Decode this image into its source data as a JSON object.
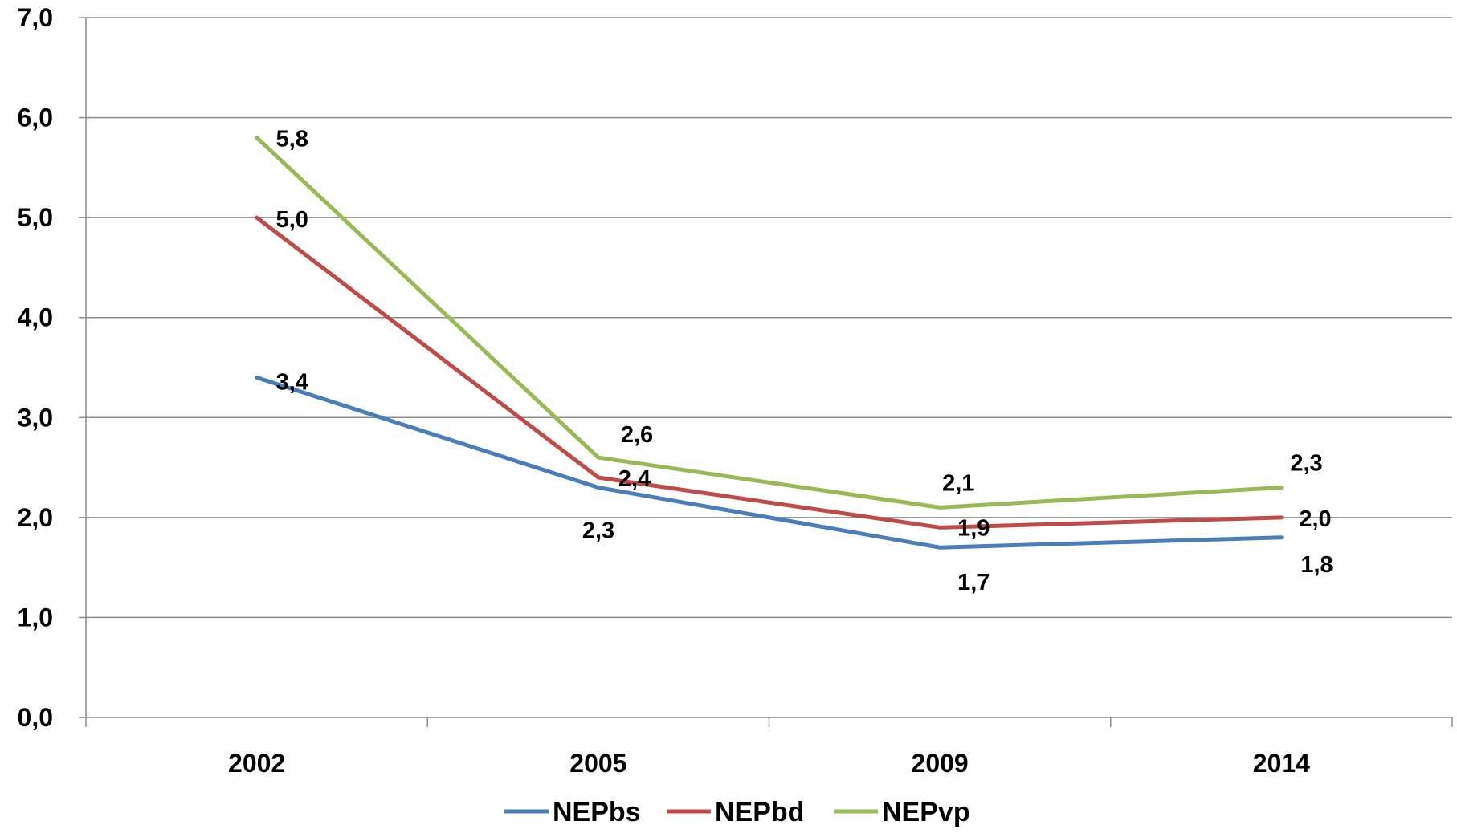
{
  "chart_data": {
    "type": "line",
    "title": "",
    "xlabel": "",
    "ylabel": "",
    "categories": [
      "2002",
      "2005",
      "2009",
      "2014"
    ],
    "ylim": [
      0,
      7
    ],
    "yticks": [
      "0,0",
      "1,0",
      "2,0",
      "3,0",
      "4,0",
      "5,0",
      "6,0",
      "7,0"
    ],
    "grid": true,
    "legend_position": "bottom",
    "series": [
      {
        "name": "NEPbs",
        "color": "#4a7ebb",
        "values": [
          3.4,
          2.3,
          1.7,
          1.8
        ],
        "labels": [
          "3,4",
          "2,3",
          "1,7",
          "1,8"
        ]
      },
      {
        "name": "NEPbd",
        "color": "#be4b48",
        "values": [
          5.0,
          2.4,
          1.9,
          2.0
        ],
        "labels": [
          "5,0",
          "2,4",
          "1,9",
          "2,0"
        ]
      },
      {
        "name": "NEPvp",
        "color": "#98b954",
        "values": [
          5.8,
          2.6,
          2.1,
          2.3
        ],
        "labels": [
          "5,8",
          "2,6",
          "2,1",
          "2,3"
        ]
      }
    ]
  }
}
